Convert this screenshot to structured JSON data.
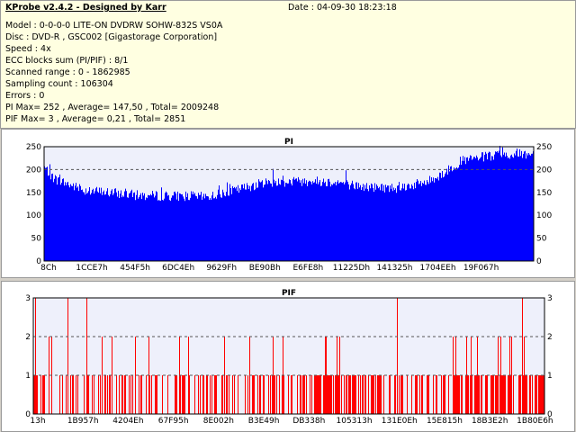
{
  "info": {
    "title": "KProbe v2.4.2 - Designed by Karr",
    "date": "Date : 04-09-30 18:23:18",
    "lines": [
      "Model : 0-0-0-0 LITE-ON DVDRW SOHW-832S  VS0A",
      "Disc : DVD-R , GSC002 [Gigastorage Corporation]",
      "Speed : 4x",
      "ECC blocks sum (PI/PIF) : 8/1",
      "Scanned range : 0 - 1862985",
      "Sampling count : 106304",
      "Errors : 0",
      "PI Max= 252 , Average= 147,50 , Total= 2009248",
      "PIF Max= 3 , Average= 0,21 , Total= 2851"
    ]
  },
  "chart_data": [
    {
      "type": "bar",
      "title": "PI",
      "ylim": [
        0,
        250
      ],
      "yticks": [
        "0",
        "50",
        "100",
        "150",
        "200",
        "250"
      ],
      "xticks": [
        "8Ch",
        "1CCE7h",
        "454F5h",
        "6DC4Eh",
        "9629Fh",
        "BE90Bh",
        "E6FE8h",
        "11225Dh",
        "141325h",
        "1704EEh",
        "19F067h"
      ],
      "reference_line": 200,
      "color": "#0000ff",
      "profile_x": [
        0,
        0.02,
        0.08,
        0.2,
        0.3,
        0.33,
        0.38,
        0.45,
        0.55,
        0.6,
        0.65,
        0.72,
        0.78,
        0.82,
        0.85,
        0.9,
        0.95,
        1.0
      ],
      "profile_y": [
        205,
        180,
        155,
        143,
        142,
        140,
        152,
        172,
        175,
        172,
        162,
        160,
        172,
        195,
        218,
        228,
        232,
        235
      ]
    },
    {
      "type": "bar",
      "title": "PIF",
      "ylim": [
        0,
        3
      ],
      "yticks": [
        "0",
        "1",
        "2",
        "3"
      ],
      "xticks": [
        "13h",
        "1B957h",
        "4204Eh",
        "67F95h",
        "8E002h",
        "B3E49h",
        "DB338h",
        "105313h",
        "131E0Eh",
        "15E815h",
        "18B3E2h",
        "1B80E6h"
      ],
      "reference_lines": [
        1,
        2
      ],
      "color": "#ff0000",
      "max": 3,
      "average": 0.21
    }
  ]
}
